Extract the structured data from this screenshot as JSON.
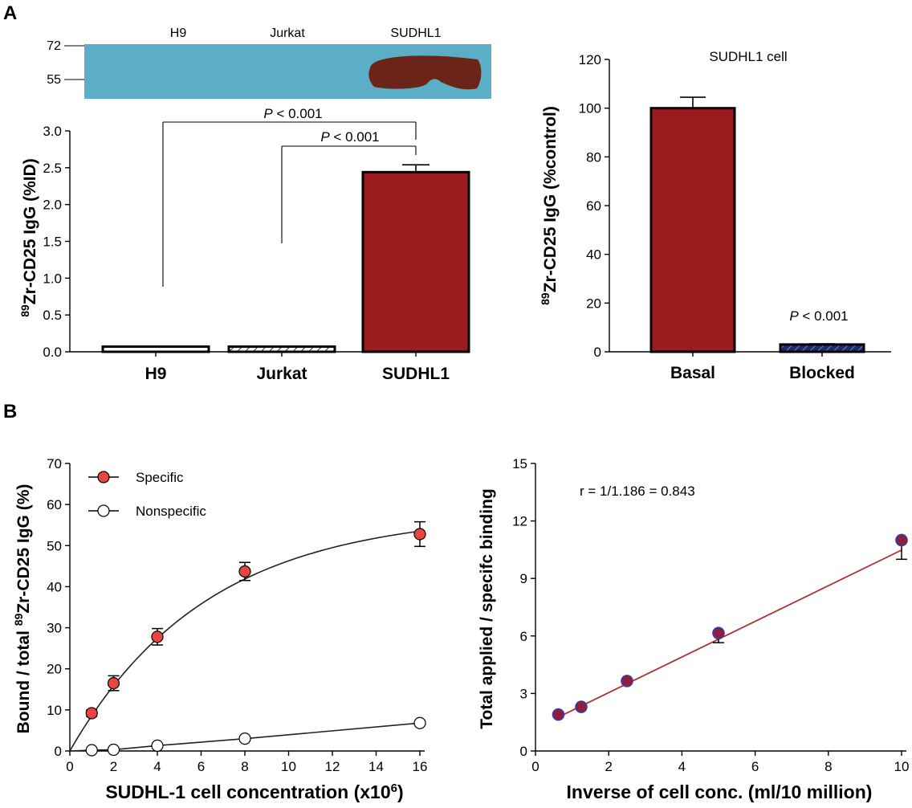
{
  "panels": {
    "a": "A",
    "b": "B"
  },
  "colors": {
    "dark_red": "#9b1b1f",
    "navy": "#1d2a6b",
    "blot_blue": "#5badc8",
    "blot_band": "#6b2418",
    "marker_red": "#e8463f",
    "line_red": "#b03030"
  },
  "blot": {
    "lanes": [
      "H9",
      "Jurkat",
      "SUDHL1"
    ],
    "markers": [
      "72",
      "55"
    ]
  },
  "chart_data": [
    {
      "id": "a1",
      "type": "bar",
      "title": "",
      "categories": [
        "H9",
        "Jurkat",
        "SUDHL1"
      ],
      "values": [
        0.07,
        0.07,
        2.44
      ],
      "errors": [
        0.0,
        0.0,
        0.1
      ],
      "ylabel_sup": "89",
      "ylabel": "Zr-CD25 IgG (%ID)",
      "ylim": [
        0,
        3.0
      ],
      "yticks": [
        0.0,
        0.5,
        1.0,
        1.5,
        2.0,
        2.5,
        3.0
      ],
      "ytick_labels": [
        "0.0",
        "0.5",
        "1.0",
        "1.5",
        "2.0",
        "2.5",
        "3.0"
      ],
      "annotations": [
        {
          "text": "P < 0.001",
          "from": "H9",
          "to": "SUDHL1"
        },
        {
          "text": "P < 0.001",
          "from": "Jurkat",
          "to": "SUDHL1"
        }
      ]
    },
    {
      "id": "a2",
      "type": "bar",
      "title": "SUDHL1 cell",
      "categories": [
        "Basal",
        "Blocked"
      ],
      "values": [
        100,
        3
      ],
      "errors": [
        4.5,
        0.3
      ],
      "ylabel_sup": "89",
      "ylabel": "Zr-CD25 IgG (%control)",
      "ylim": [
        0,
        120
      ],
      "yticks": [
        0,
        20,
        40,
        60,
        80,
        100,
        120
      ],
      "annotations": [
        {
          "text": "P < 0.001",
          "on": "Blocked"
        }
      ]
    },
    {
      "id": "b1",
      "type": "scatter",
      "xlabel": "SUDHL-1 cell concentration (x10",
      "xlabel_sup": "6",
      "xlabel_end": ")",
      "ylabel_pre": "Bound / total ",
      "ylabel_sup": "89",
      "ylabel_post": "Zr-CD25 IgG (%)",
      "xlim": [
        0,
        16
      ],
      "ylim": [
        0,
        70
      ],
      "xticks": [
        0,
        2,
        4,
        6,
        8,
        10,
        12,
        14,
        16
      ],
      "yticks": [
        0,
        10,
        20,
        30,
        40,
        50,
        60,
        70
      ],
      "series": [
        {
          "name": "Specific",
          "x": [
            1,
            2,
            4,
            8,
            16
          ],
          "y": [
            9.2,
            16.5,
            27.8,
            43.7,
            52.8
          ],
          "err": [
            0.8,
            1.8,
            2.0,
            2.2,
            3.0
          ]
        },
        {
          "name": "Nonspecific",
          "x": [
            1,
            2,
            4,
            8,
            16
          ],
          "y": [
            0.2,
            0.3,
            1.3,
            3.0,
            6.8
          ],
          "err": [
            0,
            0,
            0,
            0,
            0
          ]
        }
      ],
      "fit": {
        "model": "one-site saturation",
        "bmax": 58,
        "k": 0.16
      }
    },
    {
      "id": "b2",
      "type": "scatter",
      "xlabel": "Inverse of cell conc. (ml/10 million)",
      "ylabel": "Total applied / specifc binding",
      "xlim": [
        0,
        10
      ],
      "ylim": [
        0,
        15
      ],
      "xticks": [
        0,
        2,
        4,
        6,
        8,
        10
      ],
      "yticks": [
        0,
        3,
        6,
        9,
        12,
        15
      ],
      "annotation": "r = 1/1.186 = 0.843",
      "series": [
        {
          "name": "points",
          "x": [
            0.625,
            1.25,
            2.5,
            5,
            10
          ],
          "y": [
            1.9,
            2.3,
            3.65,
            6.15,
            11.0
          ],
          "err": [
            0,
            0,
            0,
            0.5,
            1.0
          ]
        }
      ],
      "fit": {
        "slope": 0.9294,
        "intercept": 1.186,
        "x_range": [
          0.625,
          10
        ]
      }
    }
  ]
}
